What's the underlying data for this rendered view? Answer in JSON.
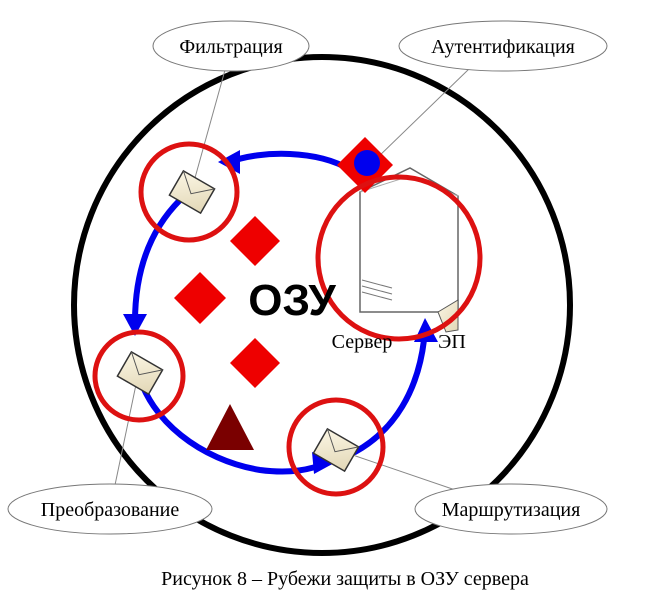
{
  "diagram": {
    "center_label": "ОЗУ",
    "server_label": "Сервер",
    "ep_label": "ЭП",
    "callouts": {
      "filtration": "Фильтрация",
      "authentication": "Аутентификация",
      "transformation": "Преобразование",
      "routing": "Маршрутизация"
    }
  },
  "caption": "Рисунок 8 – Рубежи защиты в ОЗУ сервера",
  "colors": {
    "ring": "#000000",
    "flow_arrow": "#0000ee",
    "highlight_circle": "#dd1111",
    "diamond": "#ee0000",
    "triangle": "#7a0000",
    "auth_dot": "#0000ee"
  }
}
